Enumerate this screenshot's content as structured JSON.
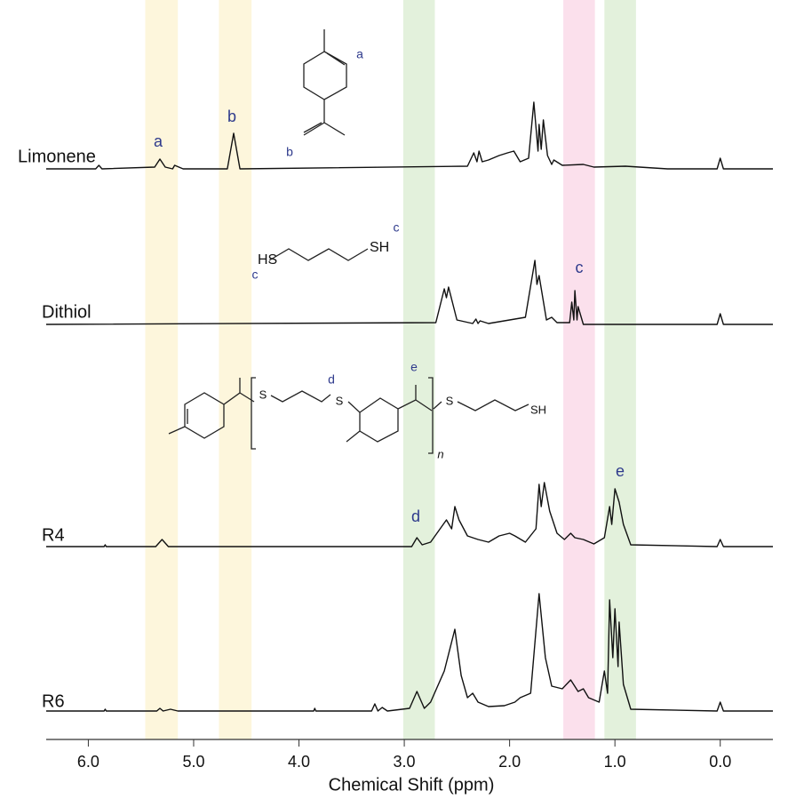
{
  "chart_data": {
    "type": "nmr",
    "x_label": "Chemical Shift (ppm)",
    "xlim": [
      6.4,
      -0.5
    ],
    "xticks": [
      {
        "value": 6,
        "label": "6.0"
      },
      {
        "value": 5,
        "label": "5.0"
      },
      {
        "value": 4,
        "label": "4.0"
      },
      {
        "value": 3,
        "label": "3.0"
      },
      {
        "value": 2,
        "label": "2.0"
      },
      {
        "value": 1,
        "label": "1.0"
      },
      {
        "value": 0,
        "label": "0.0"
      }
    ],
    "highlights": [
      {
        "xlim": [
          5.46,
          5.15
        ],
        "color": "#fdf6dc"
      },
      {
        "xlim": [
          4.76,
          4.45
        ],
        "color": "#fdf6dc"
      },
      {
        "xlim": [
          3.01,
          2.71
        ],
        "color": "#e3f1dc"
      },
      {
        "xlim": [
          1.49,
          1.19
        ],
        "color": "#fbe0ec"
      },
      {
        "xlim": [
          1.1,
          0.8
        ],
        "color": "#e3f1dc"
      }
    ],
    "series": [
      {
        "name": "Limonene",
        "color": "#111111",
        "x": [
          6.4,
          5.93,
          5.9,
          5.87,
          5.37,
          5.32,
          5.27,
          5.2,
          5.18,
          5.1,
          4.68,
          4.62,
          4.56,
          2.4,
          2.34,
          2.31,
          2.29,
          2.26,
          2.2,
          2.1,
          2.02,
          1.96,
          1.9,
          1.82,
          1.77,
          1.73,
          1.72,
          1.7,
          1.68,
          1.64,
          1.6,
          1.58,
          1.5,
          1.3,
          1.2,
          0.9,
          0.5,
          0.03,
          0,
          -0.03,
          -0.5
        ],
        "values": [
          0,
          0,
          4,
          0,
          2,
          11,
          2,
          0,
          4,
          0,
          0,
          40,
          0,
          3,
          18,
          8,
          20,
          8,
          10,
          15,
          18,
          20,
          8,
          12,
          75,
          20,
          50,
          22,
          55,
          15,
          5,
          10,
          4,
          5,
          2,
          3,
          0,
          0,
          12,
          0,
          0
        ]
      },
      {
        "name": "Dithiol",
        "color": "#111111",
        "x": [
          6.4,
          2.7,
          2.62,
          2.6,
          2.58,
          2.5,
          2.35,
          2.32,
          2.3,
          2.28,
          2.2,
          1.85,
          1.76,
          1.74,
          1.72,
          1.65,
          1.6,
          1.55,
          1.43,
          1.41,
          1.39,
          1.38,
          1.36,
          1.35,
          1.3,
          0.03,
          0,
          -0.03,
          -0.5
        ],
        "values": [
          0,
          2,
          40,
          30,
          42,
          5,
          1,
          6,
          1,
          4,
          1,
          8,
          72,
          45,
          55,
          5,
          8,
          2,
          2,
          25,
          5,
          38,
          5,
          20,
          0,
          0,
          12,
          0,
          0
        ]
      },
      {
        "name": "R4",
        "color": "#111111",
        "x": [
          6.4,
          5.85,
          5.84,
          5.83,
          5.36,
          5.3,
          5.24,
          2.93,
          2.88,
          2.83,
          2.75,
          2.6,
          2.55,
          2.52,
          2.48,
          2.4,
          2.35,
          2.3,
          2.2,
          2.1,
          2.0,
          1.95,
          1.85,
          1.75,
          1.72,
          1.7,
          1.67,
          1.62,
          1.55,
          1.48,
          1.42,
          1.38,
          1.3,
          1.2,
          1.1,
          1.05,
          1.03,
          1.0,
          0.96,
          0.92,
          0.85,
          0.03,
          0,
          -0.03,
          -0.5
        ],
        "values": [
          0,
          0,
          2,
          0,
          0,
          8,
          0,
          0,
          10,
          2,
          5,
          30,
          20,
          45,
          30,
          12,
          10,
          8,
          5,
          12,
          15,
          12,
          5,
          20,
          70,
          45,
          72,
          40,
          15,
          8,
          15,
          10,
          8,
          3,
          10,
          45,
          25,
          65,
          50,
          25,
          2,
          0,
          8,
          0,
          0
        ]
      },
      {
        "name": "R6",
        "color": "#111111",
        "x": [
          6.4,
          5.85,
          5.84,
          5.83,
          5.35,
          5.32,
          5.29,
          5.22,
          5.15,
          3.86,
          3.85,
          3.84,
          3.31,
          3.28,
          3.25,
          3.21,
          3.16,
          2.95,
          2.88,
          2.81,
          2.75,
          2.62,
          2.52,
          2.46,
          2.4,
          2.35,
          2.3,
          2.2,
          2.05,
          1.95,
          1.9,
          1.8,
          1.72,
          1.66,
          1.6,
          1.5,
          1.42,
          1.35,
          1.3,
          1.25,
          1.15,
          1.1,
          1.07,
          1.05,
          1.02,
          1.0,
          0.97,
          0.96,
          0.92,
          0.85,
          0.03,
          0,
          -0.03,
          -0.5
        ],
        "values": [
          0,
          0,
          2,
          0,
          0,
          3,
          0,
          2,
          0,
          0,
          3,
          0,
          0,
          8,
          0,
          4,
          0,
          3,
          22,
          3,
          10,
          45,
          92,
          40,
          15,
          20,
          10,
          5,
          6,
          10,
          15,
          20,
          132,
          60,
          28,
          25,
          35,
          22,
          25,
          15,
          10,
          45,
          20,
          125,
          60,
          115,
          50,
          100,
          30,
          2,
          0,
          10,
          0,
          0
        ]
      }
    ],
    "peak_labels": [
      "a",
      "b",
      "b",
      "a",
      "c",
      "c",
      "c",
      "d",
      "e",
      "d",
      "e"
    ],
    "structure_labels": [
      "HS",
      "SH",
      "S",
      "S",
      "S",
      "SH",
      "n"
    ]
  }
}
